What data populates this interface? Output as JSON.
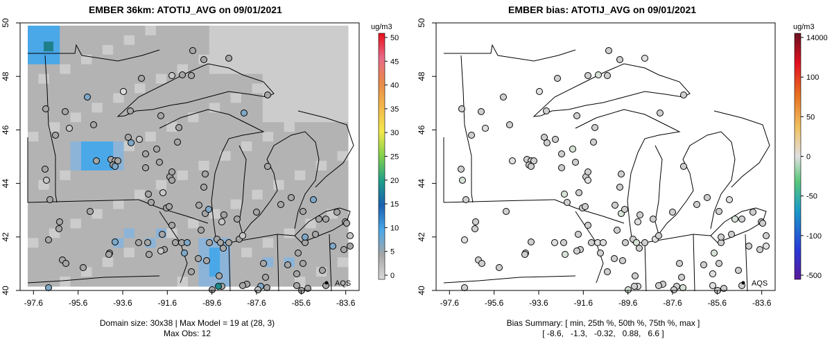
{
  "left": {
    "title": "EMBER 36km: ATOTIJ_AVG on 09/01/2021",
    "colorbar_title": "ug/m3",
    "colorbar_ticks": [
      "0",
      "5",
      "10",
      "15",
      "20",
      "25",
      "30",
      "35",
      "40",
      "45",
      "50"
    ],
    "legend_label": "AQS",
    "caption_line1": "Domain size: 30x38 | Max Model = 19 at (28, 3)",
    "caption_line2": "Max Obs: 12"
  },
  "right": {
    "title": "EMBER bias: ATOTIJ_AVG on 09/01/2021",
    "colorbar_title": "ug/m3",
    "colorbar_ticks": [
      "-500",
      "-100",
      "-50",
      "0",
      "50",
      "100",
      "14000"
    ],
    "legend_label": "AQS",
    "caption_line1": "Bias Summary: [ min, 25th %, 50th %, 75th %, max ]",
    "caption_line2": "[ -8.6,   -1.3,   -0.32,   0.88,   6.6 ]"
  },
  "axes": {
    "x_ticks": [
      "-97.6",
      "-95.6",
      "-93.6",
      "-91.6",
      "-89.6",
      "-87.6",
      "-85.6",
      "-83.6"
    ],
    "y_ticks": [
      "40",
      "42",
      "44",
      "46",
      "48",
      "50"
    ],
    "xlim": [
      -98.2,
      -83.0
    ],
    "ylim": [
      40.0,
      50.0
    ]
  },
  "colors": {
    "grid_gray": "#b3b3b3",
    "light_gray": "#cccccc",
    "blue_light": "#8cb4d8",
    "blue": "#4aa8e8",
    "teal": "#1f7f8a",
    "station_outline": "#000000"
  }
}
